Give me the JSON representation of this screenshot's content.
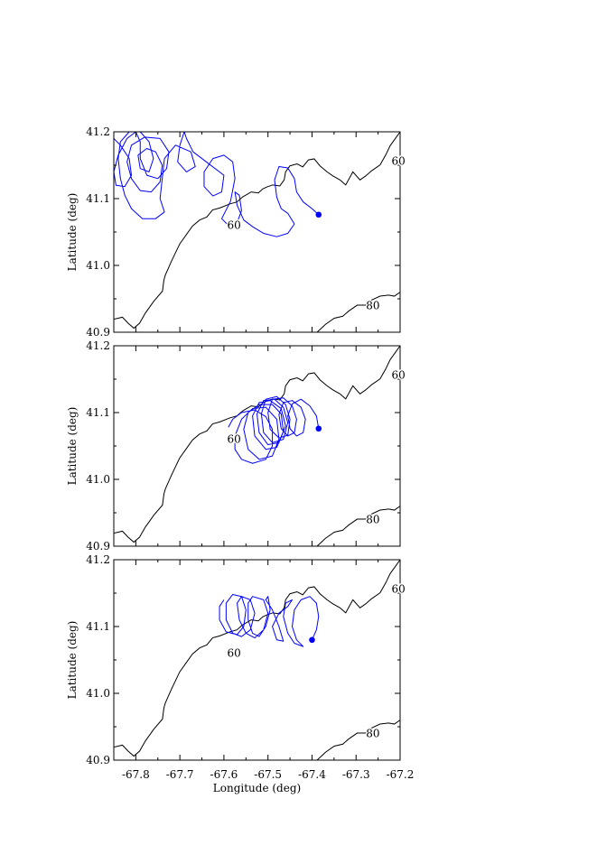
{
  "chart_data": [
    {
      "type": "line",
      "panel": "top",
      "ylabel": "Latitude (deg)",
      "xlim": [
        -67.85,
        -67.2
      ],
      "ylim": [
        40.9,
        41.2
      ],
      "yticks": [
        "40.9",
        "41.0",
        "41.1",
        "41.2"
      ],
      "contour_labels": [
        "60",
        "60",
        "80"
      ],
      "series": [
        {
          "color": "#0000ff",
          "points": [
            [
              -67.385,
              41.076
            ],
            [
              -67.4,
              41.085
            ],
            [
              -67.42,
              41.095
            ],
            [
              -67.435,
              41.11
            ],
            [
              -67.44,
              41.13
            ],
            [
              -67.455,
              41.146
            ],
            [
              -67.475,
              41.148
            ],
            [
              -67.485,
              41.128
            ],
            [
              -67.48,
              41.102
            ],
            [
              -67.47,
              41.085
            ],
            [
              -67.455,
              41.078
            ],
            [
              -67.44,
              41.062
            ],
            [
              -67.455,
              41.048
            ],
            [
              -67.48,
              41.043
            ],
            [
              -67.51,
              41.048
            ],
            [
              -67.535,
              41.058
            ],
            [
              -67.555,
              41.068
            ],
            [
              -67.57,
              41.09
            ],
            [
              -67.575,
              41.11
            ],
            [
              -67.565,
              41.105
            ],
            [
              -67.56,
              41.082
            ],
            [
              -67.57,
              41.064
            ],
            [
              -67.59,
              41.06
            ],
            [
              -67.605,
              41.07
            ],
            [
              -67.585,
              41.096
            ],
            [
              -67.575,
              41.13
            ],
            [
              -67.58,
              41.155
            ],
            [
              -67.6,
              41.165
            ],
            [
              -67.625,
              41.16
            ],
            [
              -67.645,
              41.14
            ],
            [
              -67.645,
              41.118
            ],
            [
              -67.625,
              41.104
            ],
            [
              -67.605,
              41.11
            ],
            [
              -67.6,
              41.135
            ],
            [
              -67.64,
              41.155
            ],
            [
              -67.67,
              41.17
            ],
            [
              -67.685,
              41.19
            ],
            [
              -67.69,
              41.2
            ],
            [
              -67.7,
              41.18
            ],
            [
              -67.705,
              41.155
            ],
            [
              -67.685,
              41.14
            ],
            [
              -67.665,
              41.148
            ],
            [
              -67.675,
              41.17
            ],
            [
              -67.71,
              41.18
            ],
            [
              -67.735,
              41.16
            ],
            [
              -67.74,
              41.13
            ],
            [
              -67.745,
              41.1
            ],
            [
              -67.735,
              41.08
            ],
            [
              -67.755,
              41.07
            ],
            [
              -67.785,
              41.07
            ],
            [
              -67.81,
              41.085
            ],
            [
              -67.825,
              41.105
            ],
            [
              -67.835,
              41.13
            ],
            [
              -67.84,
              41.16
            ],
            [
              -67.835,
              41.185
            ],
            [
              -67.815,
              41.2
            ],
            [
              -67.79,
              41.2
            ],
            [
              -67.77,
              41.185
            ],
            [
              -67.76,
              41.16
            ],
            [
              -67.77,
              41.14
            ],
            [
              -67.79,
              41.145
            ],
            [
              -67.795,
              41.165
            ],
            [
              -67.775,
              41.175
            ],
            [
              -67.755,
              41.17
            ],
            [
              -67.74,
              41.15
            ],
            [
              -67.745,
              41.125
            ],
            [
              -67.765,
              41.11
            ],
            [
              -67.79,
              41.112
            ],
            [
              -67.81,
              41.13
            ],
            [
              -67.82,
              41.155
            ],
            [
              -67.81,
              41.18
            ],
            [
              -67.78,
              41.192
            ],
            [
              -67.745,
              41.19
            ],
            [
              -67.725,
              41.17
            ],
            [
              -67.73,
              41.145
            ],
            [
              -67.75,
              41.13
            ],
            [
              -67.775,
              41.135
            ],
            [
              -67.79,
              41.16
            ],
            [
              -67.79,
              41.185
            ],
            [
              -67.8,
              41.2
            ],
            [
              -67.82,
              41.19
            ],
            [
              -67.84,
              41.165
            ],
            [
              -67.85,
              41.14
            ],
            [
              -67.845,
              41.12
            ],
            [
              -67.825,
              41.118
            ],
            [
              -67.81,
              41.135
            ],
            [
              -67.815,
              41.16
            ],
            [
              -67.835,
              41.18
            ],
            [
              -67.85,
              41.19
            ]
          ]
        }
      ],
      "marker": [
        -67.385,
        41.076
      ]
    },
    {
      "type": "line",
      "panel": "middle",
      "ylabel": "Latitude (deg)",
      "xlim": [
        -67.85,
        -67.2
      ],
      "ylim": [
        40.9,
        41.2
      ],
      "yticks": [
        "40.9",
        "41.0",
        "41.1",
        "41.2"
      ],
      "contour_labels": [
        "60",
        "60",
        "80"
      ],
      "series": [
        {
          "color": "#0000ff",
          "points": [
            [
              -67.385,
              41.076
            ],
            [
              -67.39,
              41.095
            ],
            [
              -67.405,
              41.11
            ],
            [
              -67.425,
              41.12
            ],
            [
              -67.445,
              41.113
            ],
            [
              -67.455,
              41.095
            ],
            [
              -67.45,
              41.076
            ],
            [
              -67.435,
              41.065
            ],
            [
              -67.42,
              41.07
            ],
            [
              -67.415,
              41.09
            ],
            [
              -67.425,
              41.108
            ],
            [
              -67.445,
              41.118
            ],
            [
              -67.465,
              41.115
            ],
            [
              -67.475,
              41.097
            ],
            [
              -67.47,
              41.076
            ],
            [
              -67.455,
              41.065
            ],
            [
              -67.44,
              41.07
            ],
            [
              -67.435,
              41.09
            ],
            [
              -67.445,
              41.11
            ],
            [
              -67.465,
              41.122
            ],
            [
              -67.49,
              41.12
            ],
            [
              -67.5,
              41.1
            ],
            [
              -67.495,
              41.075
            ],
            [
              -67.475,
              41.062
            ],
            [
              -67.455,
              41.066
            ],
            [
              -67.45,
              41.09
            ],
            [
              -67.46,
              41.112
            ],
            [
              -67.48,
              41.124
            ],
            [
              -67.505,
              41.12
            ],
            [
              -67.515,
              41.098
            ],
            [
              -67.51,
              41.07
            ],
            [
              -67.49,
              41.055
            ],
            [
              -67.465,
              41.06
            ],
            [
              -67.455,
              41.085
            ],
            [
              -67.465,
              41.108
            ],
            [
              -67.485,
              41.12
            ],
            [
              -67.51,
              41.118
            ],
            [
              -67.525,
              41.098
            ],
            [
              -67.52,
              41.07
            ],
            [
              -67.5,
              41.052
            ],
            [
              -67.475,
              41.055
            ],
            [
              -67.46,
              41.08
            ],
            [
              -67.47,
              41.106
            ],
            [
              -67.495,
              41.118
            ],
            [
              -67.52,
              41.115
            ],
            [
              -67.535,
              41.095
            ],
            [
              -67.53,
              41.065
            ],
            [
              -67.505,
              41.045
            ],
            [
              -67.48,
              41.048
            ],
            [
              -67.465,
              41.072
            ],
            [
              -67.47,
              41.098
            ],
            [
              -67.49,
              41.112
            ],
            [
              -67.52,
              41.112
            ],
            [
              -67.545,
              41.1
            ],
            [
              -67.555,
              41.075
            ],
            [
              -67.545,
              41.045
            ],
            [
              -67.52,
              41.03
            ],
            [
              -67.49,
              41.035
            ],
            [
              -67.475,
              41.06
            ],
            [
              -67.48,
              41.09
            ],
            [
              -67.505,
              41.108
            ],
            [
              -67.535,
              41.106
            ],
            [
              -67.56,
              41.09
            ],
            [
              -67.575,
              41.065
            ],
            [
              -67.575,
              41.045
            ],
            [
              -67.56,
              41.03
            ],
            [
              -67.535,
              41.024
            ],
            [
              -67.505,
              41.03
            ],
            [
              -67.49,
              41.05
            ],
            [
              -67.49,
              41.075
            ],
            [
              -67.505,
              41.094
            ],
            [
              -67.53,
              41.104
            ],
            [
              -67.56,
              41.1
            ],
            [
              -67.58,
              41.09
            ],
            [
              -67.59,
              41.078
            ]
          ]
        }
      ],
      "marker": [
        -67.385,
        41.076
      ]
    },
    {
      "type": "line",
      "panel": "bottom",
      "ylabel": "Latitude (deg)",
      "xlabel": "Longitude (deg)",
      "xticks": [
        "-67.8",
        "-67.7",
        "-67.6",
        "-67.5",
        "-67.4",
        "-67.3",
        "-67.2"
      ],
      "xlim": [
        -67.85,
        -67.2
      ],
      "ylim": [
        40.9,
        41.2
      ],
      "yticks": [
        "40.9",
        "41.0",
        "41.1",
        "41.2"
      ],
      "contour_labels": [
        "60",
        "60",
        "80"
      ],
      "series": [
        {
          "color": "#0000ff",
          "points": [
            [
              -67.4,
              41.08
            ],
            [
              -67.39,
              41.095
            ],
            [
              -67.385,
              41.115
            ],
            [
              -67.39,
              41.135
            ],
            [
              -67.405,
              41.145
            ],
            [
              -67.425,
              41.14
            ],
            [
              -67.44,
              41.125
            ],
            [
              -67.445,
              41.1
            ],
            [
              -67.435,
              41.08
            ],
            [
              -67.42,
              41.07
            ],
            [
              -67.44,
              41.075
            ],
            [
              -67.455,
              41.09
            ],
            [
              -67.465,
              41.115
            ],
            [
              -67.46,
              41.135
            ],
            [
              -67.445,
              41.14
            ],
            [
              -67.455,
              41.13
            ],
            [
              -67.475,
              41.12
            ],
            [
              -67.49,
              41.1
            ],
            [
              -67.48,
              41.08
            ],
            [
              -67.465,
              41.078
            ],
            [
              -67.475,
              41.1
            ],
            [
              -67.49,
              41.125
            ],
            [
              -67.505,
              41.14
            ],
            [
              -67.5,
              41.145
            ],
            [
              -67.495,
              41.125
            ],
            [
              -67.505,
              41.1
            ],
            [
              -67.52,
              41.085
            ],
            [
              -67.535,
              41.09
            ],
            [
              -67.545,
              41.11
            ],
            [
              -67.545,
              41.135
            ],
            [
              -67.535,
              41.145
            ],
            [
              -67.51,
              41.14
            ],
            [
              -67.5,
              41.12
            ],
            [
              -67.51,
              41.095
            ],
            [
              -67.53,
              41.083
            ],
            [
              -67.55,
              41.09
            ],
            [
              -67.565,
              41.11
            ],
            [
              -67.57,
              41.135
            ],
            [
              -67.56,
              41.145
            ],
            [
              -67.54,
              41.14
            ],
            [
              -67.53,
              41.12
            ],
            [
              -67.54,
              41.095
            ],
            [
              -67.56,
              41.085
            ],
            [
              -67.58,
              41.09
            ],
            [
              -67.595,
              41.11
            ],
            [
              -67.595,
              41.135
            ],
            [
              -67.58,
              41.148
            ],
            [
              -67.56,
              41.145
            ],
            [
              -67.55,
              41.125
            ],
            [
              -67.555,
              41.1
            ],
            [
              -67.57,
              41.088
            ],
            [
              -67.595,
              41.092
            ],
            [
              -67.61,
              41.11
            ],
            [
              -67.61,
              41.13
            ],
            [
              -67.6,
              41.14
            ]
          ]
        }
      ],
      "marker": [
        -67.4,
        41.08
      ]
    }
  ]
}
